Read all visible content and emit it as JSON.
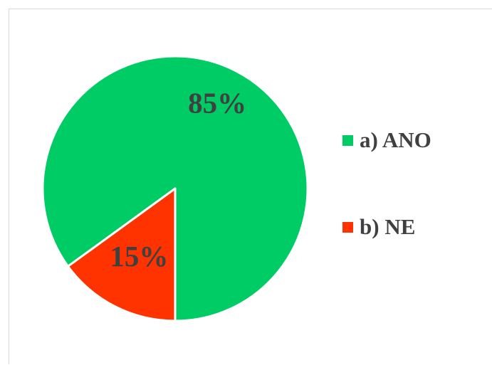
{
  "chart_data": {
    "type": "pie",
    "categories": [
      "a) ANO",
      "b) NE"
    ],
    "values": [
      85,
      15
    ],
    "data_labels": [
      "85%",
      "15%"
    ],
    "colors": [
      "#00cc66",
      "#ff3300"
    ],
    "start_angle_deg": 180,
    "direction": "counterclockwise",
    "legend_position": "right"
  }
}
